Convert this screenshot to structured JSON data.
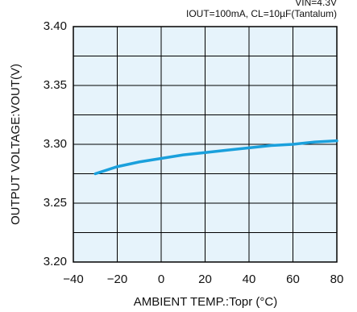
{
  "chart_data": {
    "type": "line",
    "title": "VIN=4.3V",
    "subtitle": "IOUT=100mA, CL=10µF(Tantalum)",
    "x_label": "AMBIENT TEMP.:Topr (°C)",
    "y_label": "OUTPUT VOLTAGE:VOUT(V)",
    "x": [
      -30,
      -20,
      -10,
      0,
      10,
      20,
      30,
      40,
      50,
      60,
      70,
      80
    ],
    "series": [
      {
        "color": "#1aa0dc",
        "values": [
          3.275,
          3.281,
          3.285,
          3.288,
          3.291,
          3.293,
          3.295,
          3.297,
          3.299,
          3.3,
          3.302,
          3.303
        ]
      }
    ],
    "xlim": [
      -40,
      80
    ],
    "xticks": [
      {
        "value": -40,
        "label": "−40"
      },
      {
        "value": -20,
        "label": "−20"
      },
      0,
      20,
      40,
      60,
      80
    ],
    "ylim": [
      3.2,
      3.4
    ],
    "yticks": [
      {
        "value": 3.2,
        "label": "3.20"
      },
      3.25,
      {
        "value": 3.3,
        "label": "3.30"
      },
      3.35,
      {
        "value": 3.4,
        "label": "3.40"
      }
    ],
    "y_minor_grid": [
      3.225,
      3.275,
      3.325,
      3.375
    ],
    "grid": true,
    "plot_background": "#e6f3fb"
  }
}
